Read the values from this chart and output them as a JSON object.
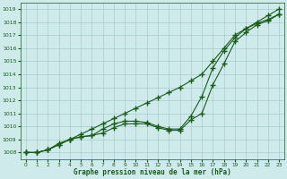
{
  "x": [
    0,
    1,
    2,
    3,
    4,
    5,
    6,
    7,
    8,
    9,
    10,
    11,
    12,
    13,
    14,
    15,
    16,
    17,
    18,
    19,
    20,
    21,
    22,
    23
  ],
  "line1": [
    1008.0,
    1008.0,
    1008.2,
    1008.7,
    1009.0,
    1009.4,
    1009.8,
    1010.2,
    1010.6,
    1011.0,
    1011.4,
    1011.8,
    1012.2,
    1012.6,
    1013.0,
    1013.5,
    1014.0,
    1015.0,
    1016.0,
    1017.0,
    1017.5,
    1018.0,
    1018.5,
    1019.0
  ],
  "line2": [
    1008.0,
    1008.0,
    1008.2,
    1008.6,
    1009.0,
    1009.2,
    1009.3,
    1009.8,
    1010.2,
    1010.4,
    1010.4,
    1010.3,
    1010.0,
    1009.8,
    1009.8,
    1010.8,
    1012.3,
    1014.5,
    1015.8,
    1016.8,
    1017.5,
    1017.9,
    1018.2,
    1018.6
  ],
  "line3": [
    1008.0,
    1008.0,
    1008.2,
    1008.6,
    1009.0,
    1009.2,
    1009.3,
    1009.5,
    1009.9,
    1010.2,
    1010.2,
    1010.2,
    1009.9,
    1009.7,
    1009.7,
    1010.5,
    1011.0,
    1013.2,
    1014.8,
    1016.5,
    1017.2,
    1017.8,
    1018.1,
    1018.6
  ],
  "ylim": [
    1007.5,
    1019.5
  ],
  "yticks": [
    1008,
    1009,
    1010,
    1011,
    1012,
    1013,
    1014,
    1015,
    1016,
    1017,
    1018,
    1019
  ],
  "xlim": [
    -0.5,
    23.5
  ],
  "xticks": [
    0,
    1,
    2,
    3,
    4,
    5,
    6,
    7,
    8,
    9,
    10,
    11,
    12,
    13,
    14,
    15,
    16,
    17,
    18,
    19,
    20,
    21,
    22,
    23
  ],
  "xlabel": "Graphe pression niveau de la mer (hPa)",
  "line_color": "#1a5c1a",
  "bg_color": "#ceeaea",
  "grid_color": "#aacccc",
  "marker": "+",
  "linewidth": 0.8,
  "markersize": 4,
  "markeredgewidth": 1.0
}
